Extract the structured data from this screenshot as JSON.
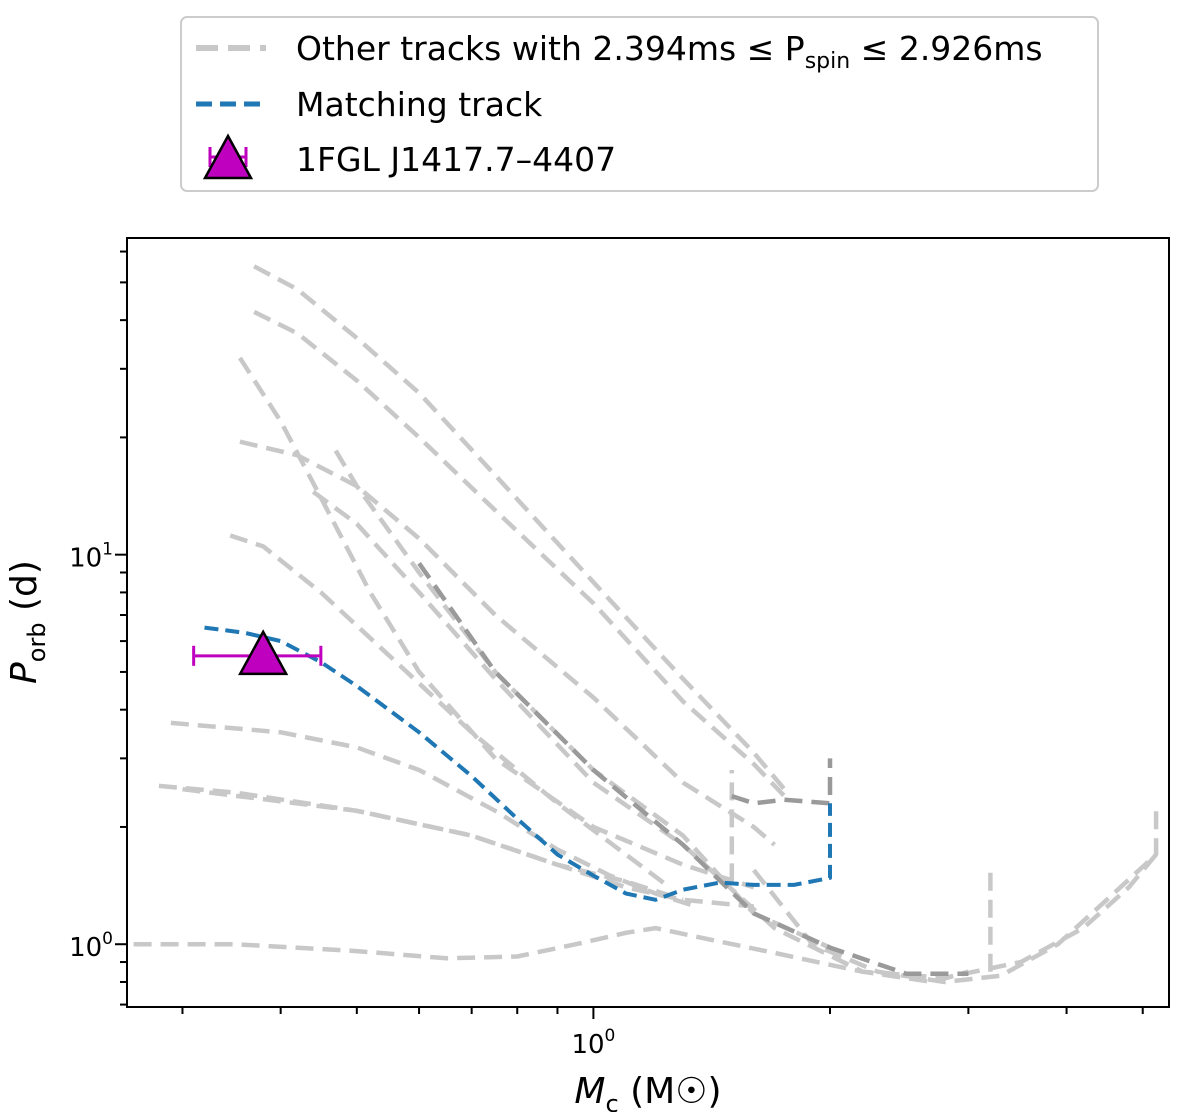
{
  "chart_data": {
    "type": "line",
    "xscale": "log",
    "yscale": "log",
    "xlim": [
      0.255,
      5.4
    ],
    "ylim": [
      0.69,
      65
    ],
    "x_ticks": [
      {
        "value": 1.0,
        "base": "10",
        "exp": "0"
      }
    ],
    "y_ticks": [
      {
        "value": 1.0,
        "base": "10",
        "exp": "0"
      },
      {
        "value": 10.0,
        "base": "10",
        "exp": "1"
      }
    ],
    "xlabel": {
      "var": "M",
      "sub": "c",
      "unit_open": " (M",
      "unit_close": ")"
    },
    "ylabel": {
      "var": "P",
      "sub": "orb",
      "unit": " (d)"
    },
    "legend": {
      "placement": "top-center (above axes)",
      "entries": [
        {
          "label_pre": "Other tracks with 2.394ms ≤ P",
          "label_sub": "spin",
          "label_post": " ≤ 2.926ms",
          "style": "dashed",
          "color": "#c8c8c8"
        },
        {
          "label": "Matching track",
          "style": "dashed",
          "color": "#1f77b4"
        },
        {
          "label": "1FGL J1417.7–4407",
          "style": "marker",
          "marker": "triangle",
          "color": "#bf00bf"
        }
      ]
    },
    "series": [
      {
        "role": "other",
        "color": "#c8c8c8",
        "points": [
          [
            0.37,
            55
          ],
          [
            0.42,
            48
          ],
          [
            0.5,
            36
          ],
          [
            0.6,
            26
          ],
          [
            0.75,
            16
          ],
          [
            1.0,
            8.5
          ],
          [
            1.3,
            4.8
          ],
          [
            1.6,
            3.1
          ],
          [
            1.75,
            2.5
          ]
        ]
      },
      {
        "role": "other",
        "color": "#c8c8c8",
        "points": [
          [
            0.37,
            42
          ],
          [
            0.42,
            37
          ],
          [
            0.5,
            28
          ],
          [
            0.6,
            20
          ],
          [
            0.75,
            13
          ],
          [
            1.0,
            7.5
          ],
          [
            1.3,
            4.2
          ],
          [
            1.6,
            2.9
          ],
          [
            1.75,
            2.4
          ]
        ]
      },
      {
        "role": "other",
        "color": "#c8c8c8",
        "points": [
          [
            0.355,
            32
          ],
          [
            0.4,
            22
          ],
          [
            0.45,
            14
          ],
          [
            0.52,
            8
          ],
          [
            0.6,
            5
          ],
          [
            0.75,
            3
          ],
          [
            1.0,
            2.0
          ],
          [
            1.3,
            1.6
          ],
          [
            1.6,
            1.4
          ]
        ]
      },
      {
        "role": "other",
        "color": "#c8c8c8",
        "points": [
          [
            0.355,
            19.5
          ],
          [
            0.42,
            18
          ],
          [
            0.5,
            15
          ],
          [
            0.6,
            11
          ],
          [
            0.75,
            7
          ],
          [
            1.0,
            4.3
          ],
          [
            1.3,
            2.6
          ],
          [
            1.6,
            2.0
          ],
          [
            1.7,
            1.8
          ]
        ]
      },
      {
        "role": "other",
        "color": "#c8c8c8",
        "points": [
          [
            0.47,
            18.5
          ],
          [
            0.5,
            15
          ],
          [
            0.6,
            9
          ],
          [
            0.75,
            5
          ],
          [
            1.0,
            2.8
          ],
          [
            1.3,
            1.9
          ],
          [
            1.6,
            1.2
          ],
          [
            2.0,
            0.98
          ]
        ]
      },
      {
        "role": "other",
        "color": "#c8c8c8",
        "points": [
          [
            0.44,
            14.5
          ],
          [
            0.5,
            12
          ],
          [
            0.6,
            8
          ],
          [
            0.75,
            4.8
          ],
          [
            1.0,
            2.6
          ],
          [
            1.3,
            1.8
          ],
          [
            1.7,
            1.1
          ],
          [
            2.2,
            0.85
          ],
          [
            2.7,
            0.8
          ],
          [
            3.0,
            0.85
          ]
        ]
      },
      {
        "role": "other",
        "color": "#c8c8c8",
        "points": [
          [
            0.345,
            11.2
          ],
          [
            0.38,
            10.5
          ],
          [
            0.45,
            8
          ],
          [
            0.55,
            5.5
          ],
          [
            0.7,
            3.5
          ],
          [
            0.9,
            2.3
          ],
          [
            1.1,
            1.7
          ],
          [
            1.25,
            1.4
          ]
        ]
      },
      {
        "role": "other",
        "color": "#c8c8c8",
        "points": [
          [
            0.29,
            3.7
          ],
          [
            0.4,
            3.5
          ],
          [
            0.5,
            3.2
          ],
          [
            0.6,
            2.8
          ],
          [
            0.75,
            2.2
          ],
          [
            0.9,
            1.75
          ],
          [
            1.05,
            1.5
          ],
          [
            1.2,
            1.35
          ],
          [
            1.35,
            1.25
          ]
        ]
      },
      {
        "role": "other",
        "color": "#c8c8c8",
        "points": [
          [
            0.28,
            2.55
          ],
          [
            0.35,
            2.45
          ],
          [
            0.5,
            2.2
          ],
          [
            0.7,
            1.9
          ],
          [
            0.9,
            1.6
          ],
          [
            1.1,
            1.4
          ],
          [
            1.3,
            1.3
          ],
          [
            1.6,
            1.25
          ]
        ]
      },
      {
        "role": "other",
        "color": "#c8c8c8",
        "points": [
          [
            0.3,
            2.5
          ],
          [
            0.5,
            2.2
          ],
          [
            0.7,
            1.9
          ],
          [
            0.9,
            1.6
          ],
          [
            1.1,
            1.45
          ],
          [
            1.3,
            1.3
          ]
        ]
      },
      {
        "role": "other",
        "color": "#c8c8c8",
        "points": [
          [
            0.26,
            1.0
          ],
          [
            0.35,
            1.0
          ],
          [
            0.5,
            0.96
          ],
          [
            0.65,
            0.92
          ],
          [
            0.8,
            0.93
          ],
          [
            0.95,
            1.0
          ],
          [
            1.1,
            1.07
          ],
          [
            1.2,
            1.1
          ],
          [
            1.4,
            1.03
          ],
          [
            1.7,
            0.95
          ],
          [
            2.2,
            0.85
          ],
          [
            2.8,
            0.82
          ],
          [
            3.5,
            0.9
          ],
          [
            4.2,
            1.1
          ],
          [
            4.8,
            1.4
          ],
          [
            5.2,
            1.7
          ]
        ]
      },
      {
        "role": "other",
        "color": "#c8c8c8",
        "points": [
          [
            1.6,
            1.55
          ],
          [
            1.9,
            1.0
          ],
          [
            2.3,
            0.85
          ],
          [
            2.8,
            0.8
          ],
          [
            3.3,
            0.83
          ],
          [
            3.9,
            1.0
          ],
          [
            4.5,
            1.3
          ],
          [
            5.2,
            1.7
          ],
          [
            5.2,
            2.2
          ]
        ]
      },
      {
        "role": "other",
        "color": "#c8c8c8",
        "points": [
          [
            1.5,
            1.45
          ],
          [
            1.5,
            2.8
          ]
        ]
      },
      {
        "role": "other",
        "color": "#c8c8c8",
        "points": [
          [
            3.2,
            0.85
          ],
          [
            3.2,
            1.6
          ]
        ]
      },
      {
        "role": "other-dark",
        "color": "#9a9a9a",
        "points": [
          [
            1.5,
            2.4
          ],
          [
            1.6,
            2.3
          ],
          [
            1.75,
            2.35
          ],
          [
            2.0,
            2.3
          ],
          [
            2.0,
            3.0
          ]
        ]
      },
      {
        "role": "other-dark",
        "color": "#9a9a9a",
        "points": [
          [
            0.6,
            9.5
          ],
          [
            0.75,
            5
          ],
          [
            1.0,
            2.8
          ],
          [
            1.3,
            1.8
          ],
          [
            1.6,
            1.2
          ],
          [
            2.0,
            0.98
          ],
          [
            2.5,
            0.84
          ],
          [
            3.0,
            0.84
          ]
        ]
      },
      {
        "role": "matching",
        "color": "#1f77b4",
        "points": [
          [
            0.32,
            6.5
          ],
          [
            0.36,
            6.3
          ],
          [
            0.4,
            6.0
          ],
          [
            0.45,
            5.3
          ],
          [
            0.5,
            4.6
          ],
          [
            0.6,
            3.5
          ],
          [
            0.7,
            2.7
          ],
          [
            0.8,
            2.1
          ],
          [
            0.9,
            1.7
          ],
          [
            1.0,
            1.5
          ],
          [
            1.1,
            1.35
          ],
          [
            1.2,
            1.3
          ],
          [
            1.3,
            1.38
          ],
          [
            1.45,
            1.44
          ],
          [
            1.6,
            1.42
          ],
          [
            1.8,
            1.42
          ],
          [
            2.0,
            1.48
          ],
          [
            2.0,
            2.3
          ]
        ]
      }
    ],
    "data_point": {
      "label": "1FGL J1417.7–4407",
      "x": 0.38,
      "y": 5.5,
      "x_err_low": 0.07,
      "x_err_high": 0.07,
      "color": "#bf00bf",
      "marker": "triangle"
    }
  }
}
